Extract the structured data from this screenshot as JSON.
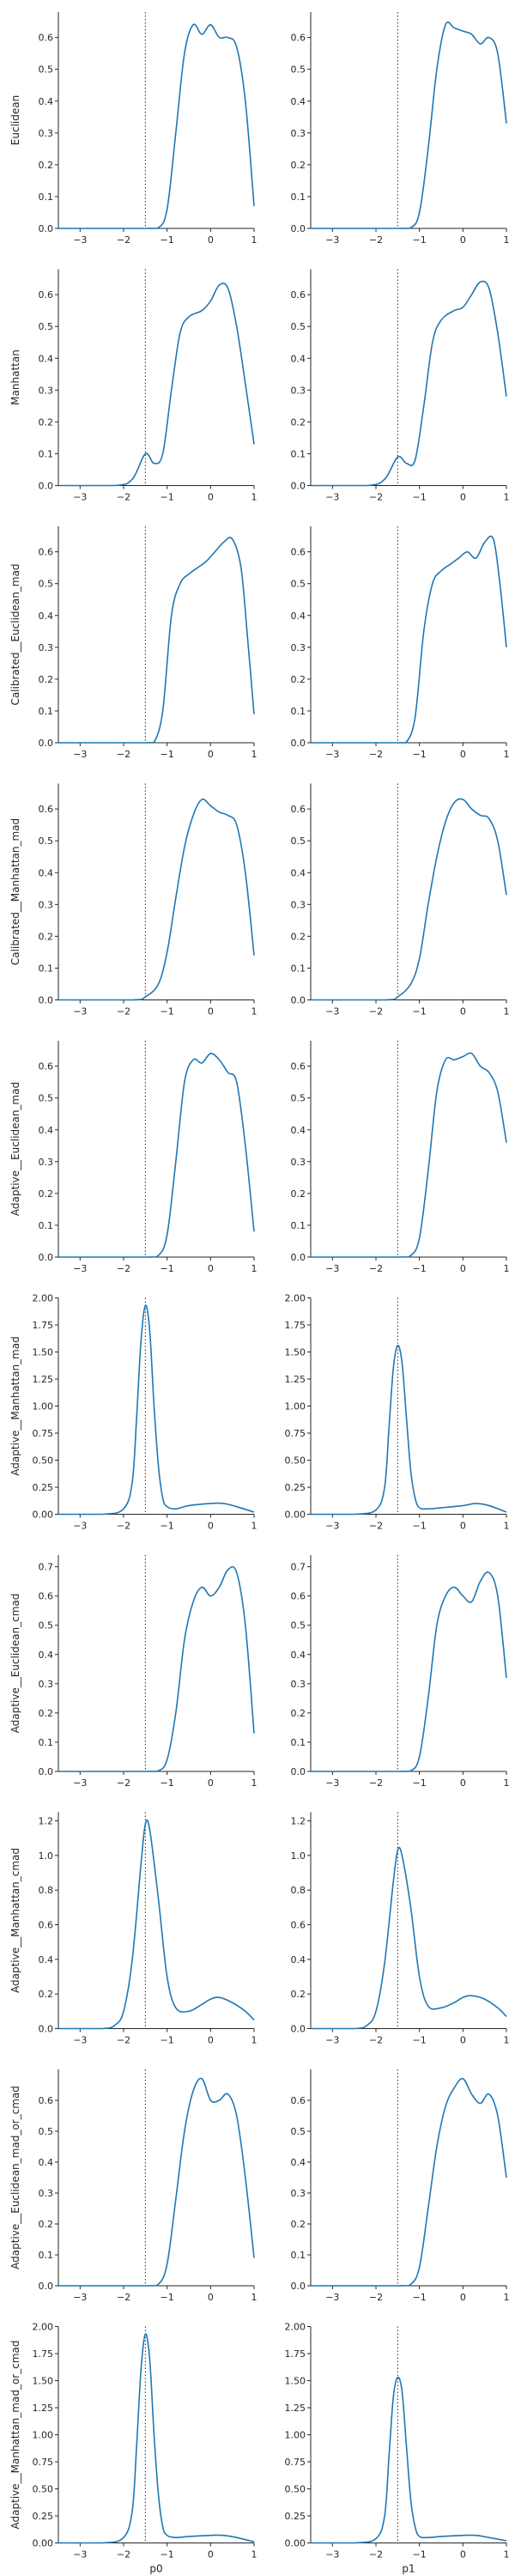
{
  "chart_data": {
    "type": "line",
    "layout": "grid",
    "grid_shape": [
      10,
      2
    ],
    "grid": false,
    "legend": "none",
    "line_color": "#1f77b4",
    "reference_line": {
      "x": -1.5,
      "style": "dotted",
      "color": "#262626"
    },
    "column_xlabels": [
      "p0",
      "p1"
    ],
    "xlim": [
      -3.5,
      1.0
    ],
    "xticks": [
      -3,
      -2,
      -1,
      0,
      1
    ],
    "rows": [
      {
        "ylabel": "Euclidean",
        "ylim": [
          0,
          0.68
        ],
        "yticks": [
          0.0,
          0.1,
          0.2,
          0.3,
          0.4,
          0.5,
          0.6
        ],
        "panels": [
          {
            "x": [
              -3.5,
              -1.5,
              -1.2,
              -1.0,
              -0.8,
              -0.6,
              -0.4,
              -0.2,
              0.0,
              0.2,
              0.4,
              0.6,
              0.8,
              1.0
            ],
            "y": [
              0.0,
              0.0,
              0.002,
              0.06,
              0.3,
              0.55,
              0.64,
              0.61,
              0.64,
              0.6,
              0.6,
              0.57,
              0.4,
              0.07
            ]
          },
          {
            "x": [
              -3.5,
              -1.5,
              -1.2,
              -1.0,
              -0.8,
              -0.6,
              -0.4,
              -0.2,
              0.0,
              0.2,
              0.4,
              0.6,
              0.8,
              1.0
            ],
            "y": [
              0.0,
              0.0,
              0.002,
              0.05,
              0.25,
              0.5,
              0.64,
              0.63,
              0.62,
              0.61,
              0.58,
              0.6,
              0.55,
              0.33
            ]
          }
        ]
      },
      {
        "ylabel": "Manhattan",
        "ylim": [
          0,
          0.68
        ],
        "yticks": [
          0.0,
          0.1,
          0.2,
          0.3,
          0.4,
          0.5,
          0.6
        ],
        "panels": [
          {
            "x": [
              -3.5,
              -2.2,
              -1.8,
              -1.5,
              -1.3,
              -1.1,
              -0.9,
              -0.7,
              -0.5,
              -0.2,
              0.0,
              0.2,
              0.4,
              0.6,
              0.8,
              1.0
            ],
            "y": [
              0.0,
              0.0,
              0.02,
              0.1,
              0.07,
              0.1,
              0.3,
              0.48,
              0.53,
              0.55,
              0.58,
              0.63,
              0.62,
              0.5,
              0.32,
              0.13
            ]
          },
          {
            "x": [
              -3.5,
              -2.2,
              -1.8,
              -1.5,
              -1.3,
              -1.1,
              -0.9,
              -0.7,
              -0.5,
              -0.2,
              0.0,
              0.2,
              0.4,
              0.6,
              0.8,
              1.0
            ],
            "y": [
              0.0,
              0.0,
              0.02,
              0.09,
              0.07,
              0.08,
              0.25,
              0.45,
              0.52,
              0.55,
              0.56,
              0.6,
              0.64,
              0.62,
              0.48,
              0.28
            ]
          }
        ]
      },
      {
        "ylabel": "Calibrated__Euclidean_mad",
        "ylim": [
          0,
          0.68
        ],
        "yticks": [
          0.0,
          0.1,
          0.2,
          0.3,
          0.4,
          0.5,
          0.6
        ],
        "panels": [
          {
            "x": [
              -3.5,
              -1.5,
              -1.3,
              -1.1,
              -0.9,
              -0.7,
              -0.5,
              -0.3,
              -0.1,
              0.1,
              0.3,
              0.5,
              0.7,
              0.85,
              1.0
            ],
            "y": [
              0.0,
              0.0,
              0.002,
              0.1,
              0.4,
              0.5,
              0.53,
              0.55,
              0.57,
              0.6,
              0.63,
              0.64,
              0.55,
              0.33,
              0.09
            ]
          },
          {
            "x": [
              -3.5,
              -1.5,
              -1.3,
              -1.1,
              -0.9,
              -0.7,
              -0.5,
              -0.3,
              -0.1,
              0.1,
              0.3,
              0.5,
              0.7,
              0.85,
              1.0
            ],
            "y": [
              0.0,
              0.0,
              0.002,
              0.08,
              0.35,
              0.5,
              0.54,
              0.56,
              0.58,
              0.6,
              0.58,
              0.63,
              0.64,
              0.5,
              0.3
            ]
          }
        ]
      },
      {
        "ylabel": "Calibrated__Manhattan_mad",
        "ylim": [
          0,
          0.68
        ],
        "yticks": [
          0.0,
          0.1,
          0.2,
          0.3,
          0.4,
          0.5,
          0.6
        ],
        "panels": [
          {
            "x": [
              -3.5,
              -1.8,
              -1.5,
              -1.2,
              -1.0,
              -0.8,
              -0.6,
              -0.4,
              -0.2,
              0.0,
              0.2,
              0.4,
              0.6,
              0.8,
              1.0
            ],
            "y": [
              0.0,
              0.0,
              0.01,
              0.05,
              0.15,
              0.32,
              0.48,
              0.58,
              0.63,
              0.61,
              0.59,
              0.58,
              0.55,
              0.4,
              0.14
            ]
          },
          {
            "x": [
              -3.5,
              -1.8,
              -1.5,
              -1.2,
              -1.0,
              -0.8,
              -0.6,
              -0.4,
              -0.2,
              0.0,
              0.2,
              0.4,
              0.6,
              0.8,
              1.0
            ],
            "y": [
              0.0,
              0.0,
              0.01,
              0.05,
              0.13,
              0.3,
              0.45,
              0.56,
              0.62,
              0.63,
              0.6,
              0.58,
              0.57,
              0.5,
              0.33
            ]
          }
        ]
      },
      {
        "ylabel": "Adaptive__Euclidean_mad",
        "ylim": [
          0,
          0.68
        ],
        "yticks": [
          0.0,
          0.1,
          0.2,
          0.3,
          0.4,
          0.5,
          0.6
        ],
        "panels": [
          {
            "x": [
              -3.5,
              -1.5,
              -1.2,
              -1.0,
              -0.8,
              -0.6,
              -0.4,
              -0.2,
              0.0,
              0.2,
              0.4,
              0.6,
              0.8,
              1.0
            ],
            "y": [
              0.0,
              0.0,
              0.005,
              0.07,
              0.3,
              0.55,
              0.62,
              0.61,
              0.64,
              0.62,
              0.58,
              0.55,
              0.35,
              0.08
            ]
          },
          {
            "x": [
              -3.5,
              -1.5,
              -1.2,
              -1.0,
              -0.8,
              -0.6,
              -0.4,
              -0.2,
              0.0,
              0.2,
              0.4,
              0.6,
              0.8,
              1.0
            ],
            "y": [
              0.0,
              0.0,
              0.005,
              0.06,
              0.27,
              0.52,
              0.62,
              0.62,
              0.63,
              0.64,
              0.6,
              0.58,
              0.52,
              0.36
            ]
          }
        ]
      },
      {
        "ylabel": "Adaptive__Manhattan_mad",
        "ylim": [
          0,
          2.0
        ],
        "yticks": [
          0.0,
          0.25,
          0.5,
          0.75,
          1.0,
          1.25,
          1.5,
          1.75,
          2.0
        ],
        "panels": [
          {
            "x": [
              -3.5,
              -2.5,
              -2.0,
              -1.8,
              -1.7,
              -1.6,
              -1.5,
              -1.4,
              -1.3,
              -1.2,
              -1.1,
              -1.0,
              -0.8,
              -0.5,
              0.0,
              0.3,
              0.6,
              1.0
            ],
            "y": [
              0.0,
              0.0,
              0.05,
              0.3,
              0.9,
              1.6,
              1.93,
              1.7,
              1.0,
              0.45,
              0.15,
              0.07,
              0.05,
              0.08,
              0.1,
              0.1,
              0.07,
              0.02
            ]
          },
          {
            "x": [
              -3.5,
              -2.5,
              -2.0,
              -1.8,
              -1.7,
              -1.6,
              -1.5,
              -1.4,
              -1.3,
              -1.2,
              -1.1,
              -1.0,
              -0.8,
              -0.5,
              0.0,
              0.3,
              0.6,
              1.0
            ],
            "y": [
              0.0,
              0.0,
              0.04,
              0.25,
              0.8,
              1.35,
              1.56,
              1.4,
              0.9,
              0.4,
              0.15,
              0.06,
              0.05,
              0.06,
              0.08,
              0.1,
              0.08,
              0.02
            ]
          }
        ]
      },
      {
        "ylabel": "Adaptive__Euclidean_cmad",
        "ylim": [
          0,
          0.74
        ],
        "yticks": [
          0.0,
          0.1,
          0.2,
          0.3,
          0.4,
          0.5,
          0.6,
          0.7
        ],
        "panels": [
          {
            "x": [
              -3.5,
              -1.5,
              -1.2,
              -1.0,
              -0.8,
              -0.6,
              -0.4,
              -0.2,
              0.0,
              0.2,
              0.4,
              0.6,
              0.8,
              1.0
            ],
            "y": [
              0.0,
              0.0,
              0.002,
              0.04,
              0.2,
              0.45,
              0.58,
              0.63,
              0.6,
              0.63,
              0.69,
              0.68,
              0.5,
              0.13
            ]
          },
          {
            "x": [
              -3.5,
              -1.5,
              -1.2,
              -1.0,
              -0.8,
              -0.6,
              -0.4,
              -0.2,
              0.0,
              0.2,
              0.4,
              0.6,
              0.8,
              1.0
            ],
            "y": [
              0.0,
              0.0,
              0.002,
              0.05,
              0.25,
              0.5,
              0.6,
              0.63,
              0.6,
              0.58,
              0.65,
              0.68,
              0.6,
              0.32
            ]
          }
        ]
      },
      {
        "ylabel": "Adaptive__Manhattan_cmad",
        "ylim": [
          0,
          1.25
        ],
        "yticks": [
          0.0,
          0.2,
          0.4,
          0.6,
          0.8,
          1.0,
          1.2
        ],
        "panels": [
          {
            "x": [
              -3.5,
              -2.5,
              -2.2,
              -2.0,
              -1.8,
              -1.6,
              -1.5,
              -1.4,
              -1.2,
              -1.0,
              -0.8,
              -0.5,
              -0.2,
              0.0,
              0.2,
              0.5,
              0.8,
              1.0
            ],
            "y": [
              0.0,
              0.0,
              0.02,
              0.1,
              0.4,
              0.95,
              1.18,
              1.15,
              0.75,
              0.3,
              0.12,
              0.1,
              0.14,
              0.17,
              0.18,
              0.15,
              0.1,
              0.05
            ]
          },
          {
            "x": [
              -3.5,
              -2.5,
              -2.2,
              -2.0,
              -1.8,
              -1.6,
              -1.5,
              -1.4,
              -1.2,
              -1.0,
              -0.8,
              -0.5,
              -0.2,
              0.0,
              0.2,
              0.5,
              0.8,
              1.0
            ],
            "y": [
              0.0,
              0.0,
              0.02,
              0.1,
              0.38,
              0.85,
              1.03,
              1.0,
              0.7,
              0.3,
              0.13,
              0.12,
              0.15,
              0.18,
              0.19,
              0.17,
              0.12,
              0.07
            ]
          }
        ]
      },
      {
        "ylabel": "Adaptive__Euclidean_mad_or_cmad",
        "ylim": [
          0,
          0.7
        ],
        "yticks": [
          0.0,
          0.1,
          0.2,
          0.3,
          0.4,
          0.5,
          0.6
        ],
        "panels": [
          {
            "x": [
              -3.5,
              -1.5,
              -1.2,
              -1.0,
              -0.8,
              -0.6,
              -0.4,
              -0.2,
              0.0,
              0.2,
              0.4,
              0.6,
              0.8,
              1.0
            ],
            "y": [
              0.0,
              0.0,
              0.005,
              0.07,
              0.28,
              0.5,
              0.63,
              0.67,
              0.6,
              0.6,
              0.62,
              0.55,
              0.35,
              0.09
            ]
          },
          {
            "x": [
              -3.5,
              -1.5,
              -1.2,
              -1.0,
              -0.8,
              -0.6,
              -0.4,
              -0.2,
              0.0,
              0.2,
              0.4,
              0.6,
              0.8,
              1.0
            ],
            "y": [
              0.0,
              0.0,
              0.005,
              0.06,
              0.25,
              0.45,
              0.58,
              0.64,
              0.67,
              0.62,
              0.59,
              0.62,
              0.55,
              0.35
            ]
          }
        ]
      },
      {
        "ylabel": "Adaptive__Manhattan_mad_or_cmad",
        "ylim": [
          0,
          2.0
        ],
        "yticks": [
          0.0,
          0.25,
          0.5,
          0.75,
          1.0,
          1.25,
          1.5,
          1.75,
          2.0
        ],
        "panels": [
          {
            "x": [
              -3.5,
              -2.5,
              -2.0,
              -1.8,
              -1.7,
              -1.6,
              -1.5,
              -1.4,
              -1.3,
              -1.2,
              -1.1,
              -1.0,
              -0.8,
              -0.5,
              0.0,
              0.3,
              0.6,
              1.0
            ],
            "y": [
              0.0,
              0.0,
              0.05,
              0.3,
              0.9,
              1.6,
              1.93,
              1.7,
              1.0,
              0.45,
              0.15,
              0.07,
              0.05,
              0.06,
              0.07,
              0.07,
              0.05,
              0.01
            ]
          },
          {
            "x": [
              -3.5,
              -2.5,
              -2.0,
              -1.8,
              -1.7,
              -1.6,
              -1.5,
              -1.4,
              -1.3,
              -1.2,
              -1.1,
              -1.0,
              -0.8,
              -0.5,
              0.0,
              0.3,
              0.6,
              1.0
            ],
            "y": [
              0.0,
              0.0,
              0.04,
              0.25,
              0.8,
              1.35,
              1.53,
              1.4,
              0.9,
              0.4,
              0.15,
              0.06,
              0.05,
              0.06,
              0.07,
              0.07,
              0.05,
              0.02
            ]
          }
        ]
      }
    ]
  }
}
